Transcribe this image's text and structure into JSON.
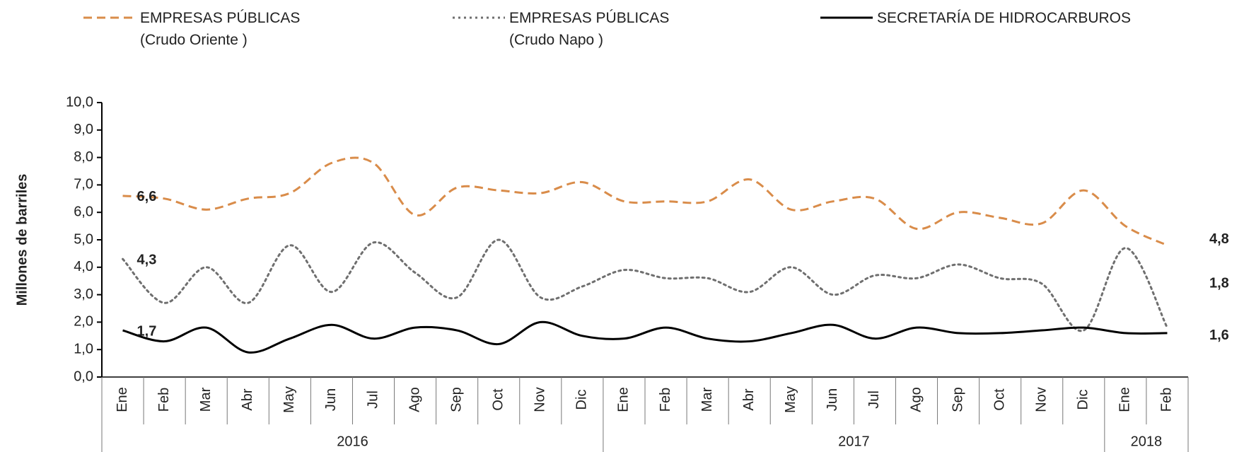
{
  "chart_data": {
    "type": "line",
    "y_label": "Millones de barriles",
    "categories": [
      "Ene",
      "Feb",
      "Mar",
      "Abr",
      "May",
      "Jun",
      "Jul",
      "Ago",
      "Sep",
      "Oct",
      "Nov",
      "Dic",
      "Ene",
      "Feb",
      "Mar",
      "Abr",
      "May",
      "Jun",
      "Jul",
      "Ago",
      "Sep",
      "Oct",
      "Nov",
      "Dic",
      "Ene",
      "Feb"
    ],
    "x_groups": [
      {
        "label": "2016",
        "count": 12
      },
      {
        "label": "2017",
        "count": 12
      },
      {
        "label": "2018",
        "count": 2
      }
    ],
    "ylim": [
      0,
      10
    ],
    "yticks": [
      {
        "value": 0,
        "label": "0,0"
      },
      {
        "value": 1,
        "label": "1,0"
      },
      {
        "value": 2,
        "label": "2,0"
      },
      {
        "value": 3,
        "label": "3,0"
      },
      {
        "value": 4,
        "label": "4,0"
      },
      {
        "value": 5,
        "label": "5,0"
      },
      {
        "value": 6,
        "label": "6,0"
      },
      {
        "value": 7,
        "label": "7,0"
      },
      {
        "value": 8,
        "label": "8,0"
      },
      {
        "value": 9,
        "label": "9,0"
      },
      {
        "value": 10,
        "label": "10,0"
      }
    ],
    "grid": false,
    "series": [
      {
        "name": "EMPRESAS PÚBLICAS\n(Crudo Oriente )",
        "color": "#d98c4a",
        "dash": "dashed",
        "values": [
          6.6,
          6.5,
          6.1,
          6.5,
          6.7,
          7.8,
          7.8,
          5.9,
          6.9,
          6.8,
          6.7,
          7.1,
          6.4,
          6.4,
          6.4,
          7.2,
          6.1,
          6.4,
          6.5,
          5.4,
          6.0,
          5.8,
          5.6,
          6.8,
          5.5,
          4.8
        ],
        "value_labels": [
          "6,6",
          null,
          null,
          null,
          null,
          null,
          null,
          null,
          null,
          null,
          null,
          null,
          null,
          null,
          null,
          null,
          null,
          null,
          null,
          null,
          null,
          null,
          null,
          null,
          null,
          "4,8"
        ]
      },
      {
        "name": "EMPRESAS PÚBLICAS\n(Crudo Napo )",
        "color": "#6f6f6f",
        "dash": "dotted",
        "values": [
          4.3,
          2.7,
          4.0,
          2.7,
          4.8,
          3.1,
          4.9,
          3.8,
          2.9,
          5.0,
          2.9,
          3.3,
          3.9,
          3.6,
          3.6,
          3.1,
          4.0,
          3.0,
          3.7,
          3.6,
          4.1,
          3.6,
          3.4,
          1.7,
          4.7,
          1.8
        ],
        "value_labels": [
          "4,3",
          null,
          null,
          null,
          null,
          null,
          null,
          null,
          null,
          null,
          null,
          null,
          null,
          null,
          null,
          null,
          null,
          null,
          null,
          null,
          null,
          null,
          null,
          null,
          null,
          "1,8"
        ]
      },
      {
        "name": "SECRETARÍA DE HIDROCARBUROS",
        "color": "#000000",
        "dash": "solid",
        "values": [
          1.7,
          1.3,
          1.8,
          0.9,
          1.4,
          1.9,
          1.4,
          1.8,
          1.7,
          1.2,
          2.0,
          1.5,
          1.4,
          1.8,
          1.4,
          1.3,
          1.6,
          1.9,
          1.4,
          1.8,
          1.6,
          1.6,
          1.7,
          1.8,
          1.6,
          1.6
        ],
        "value_labels": [
          "1,7",
          null,
          null,
          null,
          null,
          null,
          null,
          null,
          null,
          null,
          null,
          null,
          null,
          null,
          null,
          null,
          null,
          null,
          null,
          null,
          null,
          null,
          null,
          null,
          null,
          "1,6"
        ]
      }
    ]
  }
}
